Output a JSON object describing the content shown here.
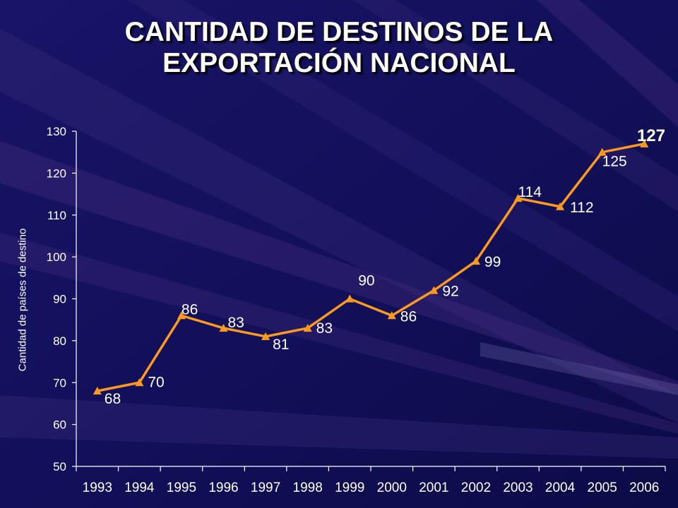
{
  "title": {
    "line1": "CANTIDAD DE DESTINOS DE LA",
    "line2": "EXPORTACIÓN NACIONAL"
  },
  "colors": {
    "background": "#100e52",
    "line": "#ff9a1f",
    "text": "#ffffff"
  },
  "chart_data": {
    "type": "line",
    "title": "CANTIDAD DE DESTINOS DE LA EXPORTACIÓN NACIONAL",
    "xlabel": "",
    "ylabel": "Cantidad de países de destino",
    "categories": [
      "1993",
      "1994",
      "1995",
      "1996",
      "1997",
      "1998",
      "1999",
      "2000",
      "2001",
      "2002",
      "2003",
      "2004",
      "2005",
      "2006"
    ],
    "series": [
      {
        "values": [
          68,
          70,
          86,
          83,
          81,
          83,
          90,
          86,
          92,
          99,
          114,
          112,
          125,
          127
        ],
        "data_labels": [
          "68",
          "70",
          "86",
          "83",
          "81",
          "83",
          "90",
          "86",
          "92",
          "99",
          "114",
          "112",
          "125",
          "127"
        ],
        "marker": "triangle"
      }
    ],
    "ylim": [
      50,
      130
    ],
    "yticks": [
      50,
      60,
      70,
      80,
      90,
      100,
      110,
      120,
      130
    ],
    "grid": false,
    "legend": "none"
  }
}
